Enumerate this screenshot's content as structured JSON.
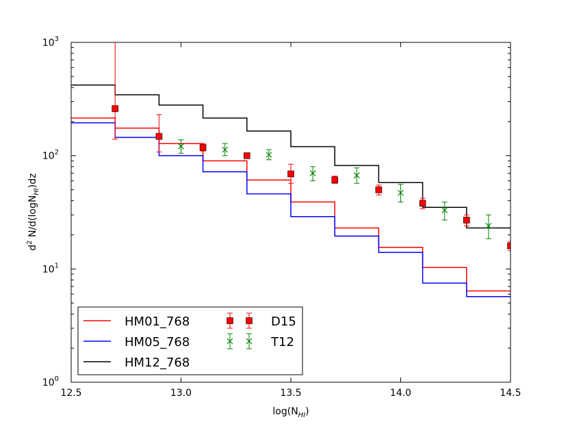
{
  "chart_data": {
    "type": "line",
    "xlabel": "log(N",
    "xlabel_sub": "HI",
    "xlabel_end": ")",
    "ylabel_sup": "2",
    "ylabel_a": "d",
    "ylabel_b": " N/d(logN",
    "ylabel_sub": "HI",
    "ylabel_c": ")dz",
    "xlim": [
      12.5,
      14.5
    ],
    "ylim": [
      1,
      1000
    ],
    "yscale": "log",
    "x_ticks": [
      "12.5",
      "13.0",
      "13.5",
      "14.0",
      "14.5"
    ],
    "x_tick_values": [
      12.5,
      13.0,
      13.5,
      14.0,
      14.5
    ],
    "y_ticks": [
      {
        "base": "10",
        "exp": "0",
        "value": 1
      },
      {
        "base": "10",
        "exp": "1",
        "value": 10
      },
      {
        "base": "10",
        "exp": "2",
        "value": 100
      },
      {
        "base": "10",
        "exp": "3",
        "value": 1000
      }
    ],
    "step_edges": [
      12.5,
      12.7,
      12.9,
      13.1,
      13.3,
      13.5,
      13.7,
      13.9,
      14.1,
      14.3,
      14.5
    ],
    "series": [
      {
        "name": "HM01_768",
        "color": "#ff0000",
        "type": "step",
        "values": [
          215,
          175,
          128,
          90,
          61,
          39,
          23,
          15.5,
          10.3,
          6.4
        ]
      },
      {
        "name": "HM05_768",
        "color": "#0000ff",
        "type": "step",
        "values": [
          195,
          145,
          100,
          72,
          46,
          29,
          19.5,
          14,
          7.5,
          5.7
        ]
      },
      {
        "name": "HM12_768",
        "color": "#000000",
        "type": "step",
        "values": [
          420,
          345,
          280,
          215,
          165,
          120,
          82,
          58,
          35,
          23
        ]
      },
      {
        "name": "D15",
        "color": "#ff0000",
        "type": "points-square",
        "x": [
          12.7,
          12.9,
          13.1,
          13.3,
          13.5,
          13.7,
          13.9,
          14.1,
          14.3,
          14.5
        ],
        "y": [
          260,
          148,
          118,
          100,
          69,
          61,
          50,
          38,
          27,
          16
        ],
        "err_low": [
          140,
          108,
          110,
          96,
          57,
          57,
          45,
          34,
          24,
          14.5
        ],
        "err_high": [
          1000,
          230,
          128,
          104,
          84,
          66,
          55,
          42,
          30,
          17.5
        ]
      },
      {
        "name": "T12",
        "color": "#008000",
        "type": "points-x",
        "x": [
          13.0,
          13.2,
          13.4,
          13.6,
          13.8,
          14.0,
          14.2,
          14.4
        ],
        "y": [
          121,
          113,
          102,
          70,
          67,
          47,
          33,
          24
        ],
        "err_low": [
          105,
          100,
          92,
          60,
          57,
          39,
          27,
          18.5
        ],
        "err_high": [
          138,
          128,
          113,
          80,
          78,
          56,
          39,
          30
        ]
      }
    ],
    "legend": {
      "position": "lower-left",
      "col1": [
        "HM01_768",
        "HM05_768",
        "HM12_768"
      ],
      "col2": [
        "D15",
        "T12"
      ]
    }
  }
}
